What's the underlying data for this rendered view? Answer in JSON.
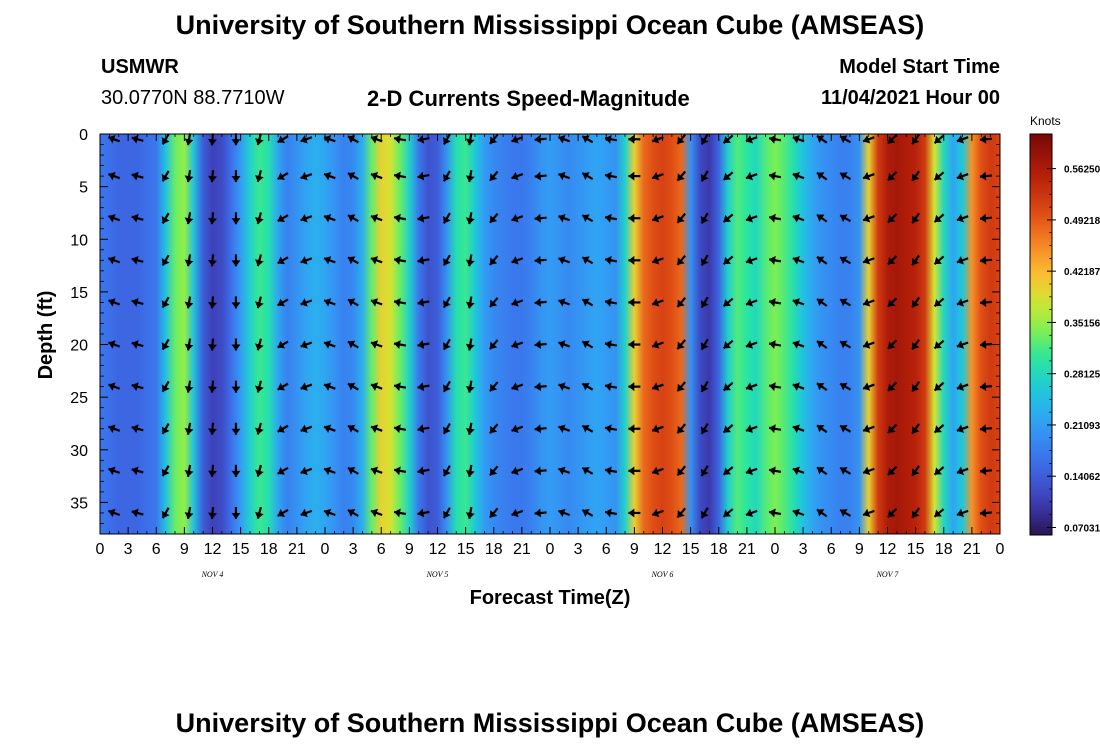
{
  "header": {
    "title": "University of Southern Mississippi Ocean Cube (AMSEAS)",
    "station": "USMWR",
    "coords": "30.0770N  88.7710W",
    "subtitle": "2-D Currents Speed-Magnitude",
    "model_start_label": "Model Start Time",
    "model_start_value": "11/04/2021 Hour 00"
  },
  "footer": {
    "title": "University of Southern Mississippi Ocean Cube (AMSEAS)"
  },
  "chart_data": {
    "type": "heatmap",
    "title": "2-D Currents Speed-Magnitude",
    "xlabel": "Forecast Time(Z)",
    "ylabel": "Depth (ft)",
    "x_tick_labels": [
      "0",
      "3",
      "6",
      "9",
      "12",
      "15",
      "18",
      "21",
      "0",
      "3",
      "6",
      "9",
      "12",
      "15",
      "18",
      "21",
      "0",
      "3",
      "6",
      "9",
      "12",
      "15",
      "18",
      "21",
      "0",
      "3",
      "6",
      "9",
      "12",
      "15",
      "18",
      "21",
      "0"
    ],
    "x_hours_range": [
      0,
      96
    ],
    "date_labels": [
      {
        "label": "NOV 4",
        "hour": 12
      },
      {
        "label": "NOV 5",
        "hour": 36
      },
      {
        "label": "NOV 6",
        "hour": 60
      },
      {
        "label": "NOV 7",
        "hour": 84
      }
    ],
    "y_ticks": [
      0,
      5,
      10,
      15,
      20,
      25,
      30,
      35
    ],
    "ylim": [
      38,
      0
    ],
    "colorbar": {
      "label": "Knots",
      "tick_labels": [
        "0.56250",
        "0.49218",
        "0.42187",
        "0.35156",
        "0.28125",
        "0.21093",
        "0.14062",
        "0.07031"
      ],
      "tick_values": [
        0.5625,
        0.49218,
        0.42187,
        0.35156,
        0.28125,
        0.21093,
        0.14062,
        0.07031
      ],
      "range": [
        0.06,
        0.61
      ]
    },
    "speed_series": {
      "hours": [
        0,
        1,
        2,
        3,
        4,
        5,
        6,
        7,
        8,
        9,
        10,
        11,
        12,
        13,
        14,
        15,
        16,
        17,
        18,
        19,
        20,
        21,
        22,
        23,
        24,
        25,
        26,
        27,
        28,
        29,
        30,
        31,
        32,
        33,
        34,
        35,
        36,
        37,
        38,
        39,
        40,
        41,
        42,
        43,
        44,
        45,
        46,
        47,
        48,
        49,
        50,
        51,
        52,
        53,
        54,
        55,
        56,
        57,
        58,
        59,
        60,
        61,
        62,
        63,
        64,
        65,
        66,
        67,
        68,
        69,
        70,
        71,
        72,
        73,
        74,
        75,
        76,
        77,
        78,
        79,
        80,
        81,
        82,
        83,
        84,
        85,
        86,
        87,
        88,
        89,
        90,
        91,
        92,
        93,
        94,
        95,
        96
      ],
      "knots": [
        0.17,
        0.16,
        0.15,
        0.15,
        0.15,
        0.16,
        0.17,
        0.25,
        0.33,
        0.35,
        0.25,
        0.14,
        0.11,
        0.12,
        0.16,
        0.21,
        0.27,
        0.31,
        0.29,
        0.22,
        0.18,
        0.2,
        0.22,
        0.23,
        0.22,
        0.2,
        0.18,
        0.19,
        0.23,
        0.33,
        0.4,
        0.38,
        0.33,
        0.27,
        0.17,
        0.13,
        0.14,
        0.2,
        0.29,
        0.31,
        0.26,
        0.21,
        0.19,
        0.18,
        0.17,
        0.17,
        0.18,
        0.2,
        0.21,
        0.2,
        0.19,
        0.2,
        0.21,
        0.22,
        0.21,
        0.2,
        0.27,
        0.4,
        0.48,
        0.5,
        0.51,
        0.5,
        0.48,
        0.2,
        0.12,
        0.1,
        0.15,
        0.27,
        0.32,
        0.3,
        0.28,
        0.32,
        0.34,
        0.32,
        0.29,
        0.25,
        0.22,
        0.2,
        0.19,
        0.18,
        0.18,
        0.2,
        0.4,
        0.52,
        0.56,
        0.57,
        0.56,
        0.55,
        0.52,
        0.38,
        0.28,
        0.22,
        0.26,
        0.45,
        0.5,
        0.52,
        0.51
      ]
    },
    "arrows": {
      "hours": [
        1.5,
        4,
        7,
        9.5,
        12,
        14.5,
        17,
        19.5,
        22,
        24.5,
        27,
        29.5,
        32,
        34.5,
        37,
        39.5,
        42,
        44.5,
        47,
        49.5,
        52,
        54.5,
        57,
        59.5,
        62,
        64.5,
        67,
        69.5,
        72,
        74.5,
        77,
        79.5,
        82,
        84.5,
        87,
        89.5,
        92,
        94.5
      ],
      "depths": [
        0.5,
        4,
        8,
        12,
        16,
        20,
        24,
        28,
        32,
        36
      ],
      "angles_deg": [
        200,
        195,
        120,
        100,
        95,
        90,
        105,
        150,
        160,
        200,
        210,
        200,
        190,
        170,
        120,
        100,
        130,
        160,
        175,
        200,
        210,
        190,
        180,
        160,
        130,
        120,
        140,
        160,
        190,
        200,
        215,
        210,
        160,
        135,
        125,
        140,
        160,
        175
      ]
    }
  }
}
